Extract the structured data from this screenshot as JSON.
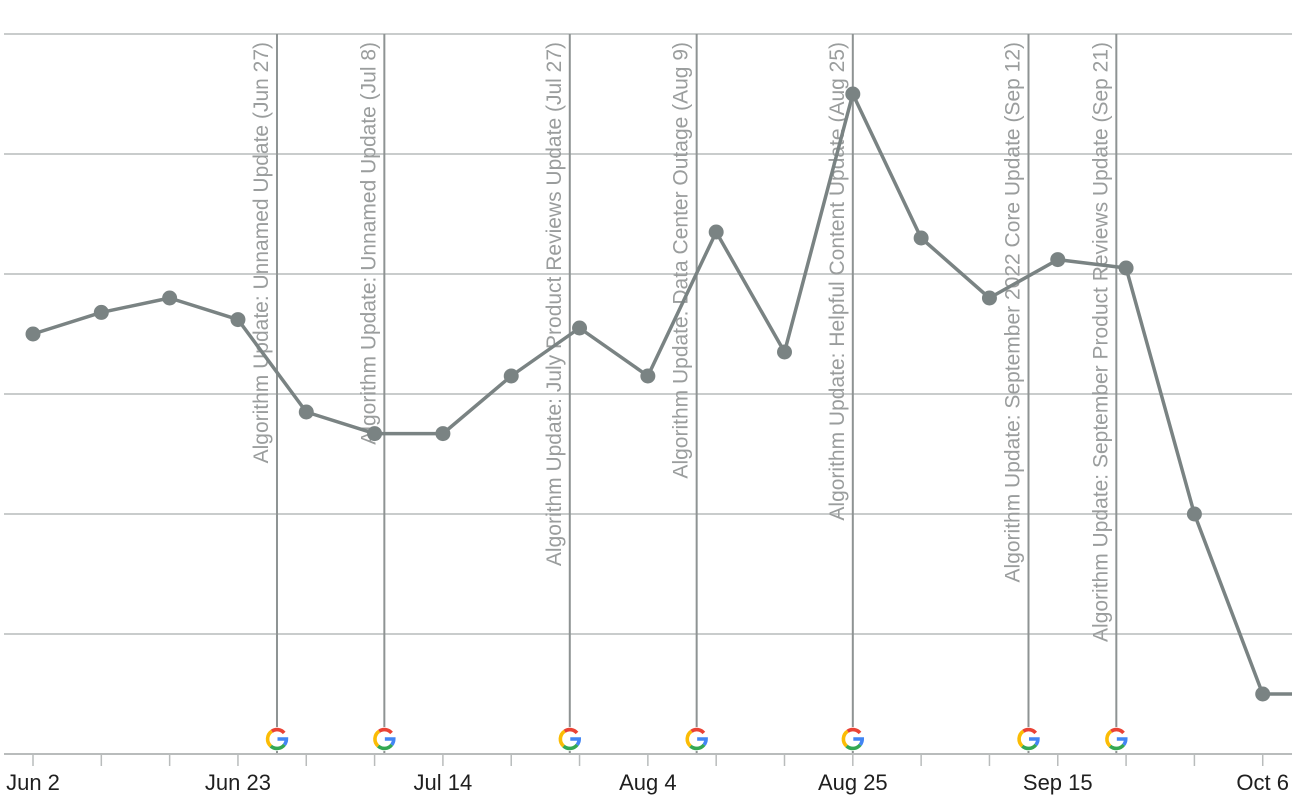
{
  "chart_data": {
    "type": "line",
    "title": "",
    "xlabel": "",
    "ylabel": "",
    "grid": true,
    "y_tick_labels_visible": false,
    "xlim": [
      "2022-06-02",
      "2022-10-09"
    ],
    "ylim": [
      0,
      6
    ],
    "x_tick_labels": [
      "Jun 2",
      "Jun 23",
      "Jul 14",
      "Aug 4",
      "Aug 25",
      "Sep 15",
      "Oct 6"
    ],
    "x_tick_dates": [
      "2022-06-02",
      "2022-06-23",
      "2022-07-14",
      "2022-08-04",
      "2022-08-25",
      "2022-09-15",
      "2022-10-06"
    ],
    "series": [
      {
        "color": "#7a8383",
        "points": [
          {
            "x": "2022-06-02",
            "y": 3.5
          },
          {
            "x": "2022-06-09",
            "y": 3.68
          },
          {
            "x": "2022-06-16",
            "y": 3.8
          },
          {
            "x": "2022-06-23",
            "y": 3.62
          },
          {
            "x": "2022-06-30",
            "y": 2.85
          },
          {
            "x": "2022-07-07",
            "y": 2.67
          },
          {
            "x": "2022-07-14",
            "y": 2.67
          },
          {
            "x": "2022-07-21",
            "y": 3.15
          },
          {
            "x": "2022-07-28",
            "y": 3.55
          },
          {
            "x": "2022-08-04",
            "y": 3.15
          },
          {
            "x": "2022-08-11",
            "y": 4.35
          },
          {
            "x": "2022-08-18",
            "y": 3.35
          },
          {
            "x": "2022-08-25",
            "y": 5.5
          },
          {
            "x": "2022-09-01",
            "y": 4.3
          },
          {
            "x": "2022-09-08",
            "y": 3.8
          },
          {
            "x": "2022-09-15",
            "y": 4.12
          },
          {
            "x": "2022-09-22",
            "y": 4.05
          },
          {
            "x": "2022-09-29",
            "y": 2.0
          },
          {
            "x": "2022-10-06",
            "y": 0.5
          },
          {
            "x": "2022-10-09",
            "y": 0.5
          }
        ]
      }
    ],
    "annotations": [
      {
        "date": "2022-06-27",
        "label": "Algorithm Update: Unnamed Update (Jun 27)",
        "icon": "google-g-icon"
      },
      {
        "date": "2022-07-08",
        "label": "Algorithm Update: Unnamed Update (Jul 8)",
        "icon": "google-g-icon"
      },
      {
        "date": "2022-07-27",
        "label": "Algorithm Update: July Product Reviews Update (Jul 27)",
        "icon": "google-g-icon"
      },
      {
        "date": "2022-08-09",
        "label": "Algorithm Update: Data Center Outage (Aug 9)",
        "icon": "google-g-icon"
      },
      {
        "date": "2022-08-25",
        "label": "Algorithm Update: Helpful Content Update (Aug 25)",
        "icon": "google-g-icon"
      },
      {
        "date": "2022-09-12",
        "label": "Algorithm Update: September 2022 Core Update (Sep 12)",
        "icon": "google-g-icon"
      },
      {
        "date": "2022-09-21",
        "label": "Algorithm Update: September Product Reviews Update (Sep 21)",
        "icon": "google-g-icon"
      }
    ],
    "colors": {
      "line": "#7a8383",
      "grid": "#c9cccc",
      "annotation_line": "#8e9393",
      "annotation_text": "#9a9d9d"
    }
  }
}
